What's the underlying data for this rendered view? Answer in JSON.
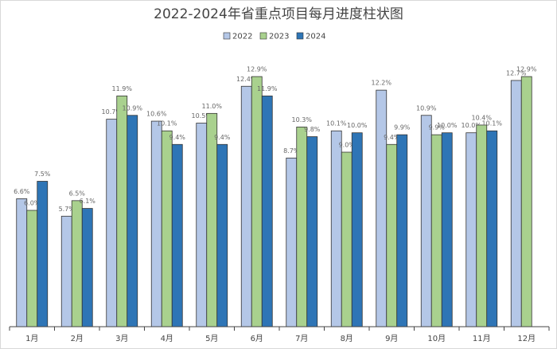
{
  "chart_data": {
    "type": "bar",
    "title": "2022-2024年省重点项目每月进度柱状图",
    "categories": [
      "1月",
      "2月",
      "3月",
      "4月",
      "5月",
      "6月",
      "7月",
      "8月",
      "9月",
      "10月",
      "11月",
      "12月"
    ],
    "series": [
      {
        "name": "2022",
        "color": "#b4c7e7",
        "values": [
          6.6,
          5.7,
          10.7,
          10.6,
          10.5,
          12.4,
          8.7,
          10.1,
          12.2,
          10.9,
          10.0,
          12.7
        ],
        "value_labels": [
          "6.6%",
          "5.7%",
          "10.7%",
          "10.6%",
          "10.5%",
          "12.4%",
          "8.7%",
          "10.1%",
          "12.2%",
          "10.9%",
          "10.0%",
          "12.7%"
        ]
      },
      {
        "name": "2023",
        "color": "#a9d18e",
        "values": [
          6.0,
          6.5,
          11.9,
          10.1,
          11.0,
          12.9,
          10.3,
          9.0,
          9.4,
          9.9,
          10.4,
          12.9
        ],
        "value_labels": [
          "6.0%",
          "6.5%",
          "11.9%",
          "10.1%",
          "11.0%",
          "12.9%",
          "10.3%",
          "9.0%",
          "9.4%",
          "9.9%",
          "10.4%",
          "12.9%"
        ]
      },
      {
        "name": "2024",
        "color": "#2e75b6",
        "values": [
          7.5,
          6.1,
          10.9,
          9.4,
          9.4,
          11.9,
          9.8,
          10.0,
          9.9,
          10.0,
          10.1,
          null
        ],
        "value_labels": [
          "7.5%",
          "6.1%",
          "10.9%",
          "9.4%",
          "9.4%",
          "11.9%",
          "9.8%",
          "10.0%",
          "9.9%",
          "10.0%",
          "10.1%",
          null
        ]
      }
    ],
    "ylim": [
      0,
      15
    ]
  }
}
